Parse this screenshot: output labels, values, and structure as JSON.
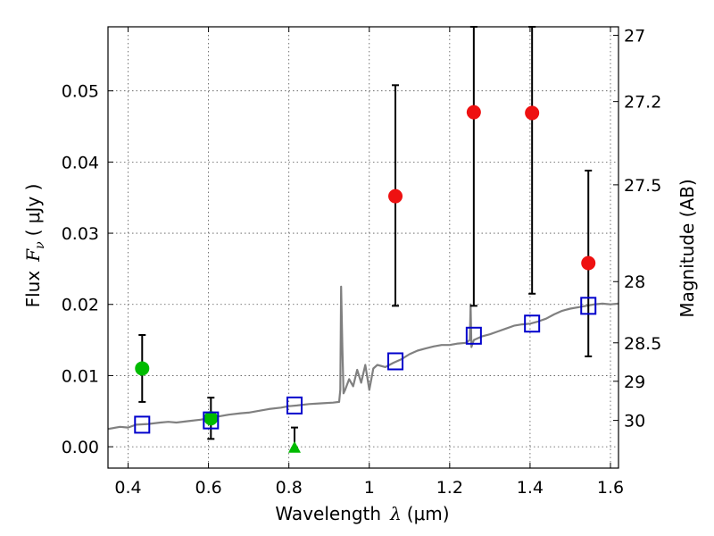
{
  "chart_data": {
    "type": "scatter",
    "xlabel": "Wavelength",
    "xlabel_math_symbol": "λ",
    "xlabel_unit": "(μm)",
    "ylabel": "Flux",
    "ylabel_math_symbol": "F",
    "ylabel_math_subscript": "ν",
    "ylabel_unit": "( μJy )",
    "y2label": "Magnitude (AB)",
    "xlim": [
      0.35,
      1.62
    ],
    "ylim": [
      -0.003,
      0.059
    ],
    "grid": true,
    "x_ticks": [
      0.4,
      0.6,
      0.8,
      1.0,
      1.2,
      1.4,
      1.6
    ],
    "x_tick_labels": [
      "0.4",
      "0.6",
      "0.8",
      "1",
      "1.2",
      "1.4",
      "1.6"
    ],
    "y_ticks": [
      0.0,
      0.01,
      0.02,
      0.03,
      0.04,
      0.05
    ],
    "y_tick_labels": [
      "0.00",
      "0.01",
      "0.02",
      "0.03",
      "0.04",
      "0.05"
    ],
    "y2_ticks": [
      {
        "label": "27",
        "flux": 0.0578
      },
      {
        "label": "27.2",
        "flux": 0.0485
      },
      {
        "label": "27.5",
        "flux": 0.0368
      },
      {
        "label": "28",
        "flux": 0.0232
      },
      {
        "label": "28.5",
        "flux": 0.0146
      },
      {
        "label": "29",
        "flux": 0.0092
      },
      {
        "label": "30",
        "flux": 0.0037
      }
    ],
    "series": [
      {
        "marker": "circle",
        "color": "#00bb00",
        "points": [
          {
            "x": 0.435,
            "y": 0.011,
            "err_low": 0.0063,
            "err_high": 0.0157
          },
          {
            "x": 0.606,
            "y": 0.004,
            "err_low": 0.0011,
            "err_high": 0.0069
          }
        ]
      },
      {
        "marker": "triangle",
        "color": "#00bb00",
        "points": [
          {
            "x": 0.814,
            "y": -0.0002,
            "err_low": -0.0002,
            "err_high": 0.0027
          }
        ]
      },
      {
        "marker": "circle",
        "color": "#ee1111",
        "points": [
          {
            "x": 1.065,
            "y": 0.0352,
            "err_low": 0.0198,
            "err_high": 0.0508
          },
          {
            "x": 1.26,
            "y": 0.047,
            "err_low": 0.0198,
            "err_high": 0.059
          },
          {
            "x": 1.405,
            "y": 0.0469,
            "err_low": 0.0215,
            "err_high": 0.059
          },
          {
            "x": 1.545,
            "y": 0.0258,
            "err_low": 0.0127,
            "err_high": 0.0388
          }
        ]
      },
      {
        "marker": "open-square",
        "color": "#0000cc",
        "points": [
          {
            "x": 0.435,
            "y": 0.0031
          },
          {
            "x": 0.606,
            "y": 0.0037
          },
          {
            "x": 0.814,
            "y": 0.0058
          },
          {
            "x": 1.065,
            "y": 0.012
          },
          {
            "x": 1.26,
            "y": 0.0156
          },
          {
            "x": 1.405,
            "y": 0.0173
          },
          {
            "x": 1.545,
            "y": 0.0198
          }
        ]
      },
      {
        "marker": "line",
        "color": "#808080",
        "points": [
          [
            0.35,
            0.0025
          ],
          [
            0.38,
            0.0028
          ],
          [
            0.4,
            0.0027
          ],
          [
            0.42,
            0.0031
          ],
          [
            0.45,
            0.0032
          ],
          [
            0.48,
            0.0034
          ],
          [
            0.5,
            0.0035
          ],
          [
            0.52,
            0.0034
          ],
          [
            0.55,
            0.0036
          ],
          [
            0.58,
            0.0038
          ],
          [
            0.6,
            0.004
          ],
          [
            0.62,
            0.0042
          ],
          [
            0.65,
            0.0045
          ],
          [
            0.68,
            0.0047
          ],
          [
            0.7,
            0.0048
          ],
          [
            0.72,
            0.005
          ],
          [
            0.75,
            0.0053
          ],
          [
            0.78,
            0.0055
          ],
          [
            0.8,
            0.0057
          ],
          [
            0.82,
            0.0058
          ],
          [
            0.85,
            0.006
          ],
          [
            0.88,
            0.0061
          ],
          [
            0.91,
            0.0062
          ],
          [
            0.925,
            0.0063
          ],
          [
            0.928,
            0.008
          ],
          [
            0.93,
            0.0225
          ],
          [
            0.933,
            0.014
          ],
          [
            0.936,
            0.0075
          ],
          [
            0.94,
            0.008
          ],
          [
            0.95,
            0.0095
          ],
          [
            0.96,
            0.0085
          ],
          [
            0.97,
            0.0108
          ],
          [
            0.98,
            0.009
          ],
          [
            0.99,
            0.0115
          ],
          [
            1.0,
            0.008
          ],
          [
            1.01,
            0.011
          ],
          [
            1.02,
            0.0115
          ],
          [
            1.04,
            0.0112
          ],
          [
            1.06,
            0.0118
          ],
          [
            1.08,
            0.0123
          ],
          [
            1.1,
            0.013
          ],
          [
            1.12,
            0.0135
          ],
          [
            1.14,
            0.0138
          ],
          [
            1.16,
            0.0141
          ],
          [
            1.18,
            0.0143
          ],
          [
            1.2,
            0.0143
          ],
          [
            1.22,
            0.0145
          ],
          [
            1.24,
            0.0146
          ],
          [
            1.25,
            0.015
          ],
          [
            1.252,
            0.02
          ],
          [
            1.254,
            0.014
          ],
          [
            1.26,
            0.015
          ],
          [
            1.28,
            0.0155
          ],
          [
            1.3,
            0.0158
          ],
          [
            1.32,
            0.0162
          ],
          [
            1.34,
            0.0166
          ],
          [
            1.36,
            0.017
          ],
          [
            1.38,
            0.0172
          ],
          [
            1.4,
            0.0173
          ],
          [
            1.42,
            0.0176
          ],
          [
            1.44,
            0.018
          ],
          [
            1.46,
            0.0186
          ],
          [
            1.48,
            0.0191
          ],
          [
            1.5,
            0.0194
          ],
          [
            1.52,
            0.0196
          ],
          [
            1.54,
            0.0198
          ],
          [
            1.56,
            0.02
          ],
          [
            1.58,
            0.0201
          ],
          [
            1.6,
            0.02
          ],
          [
            1.62,
            0.0201
          ]
        ]
      }
    ]
  }
}
